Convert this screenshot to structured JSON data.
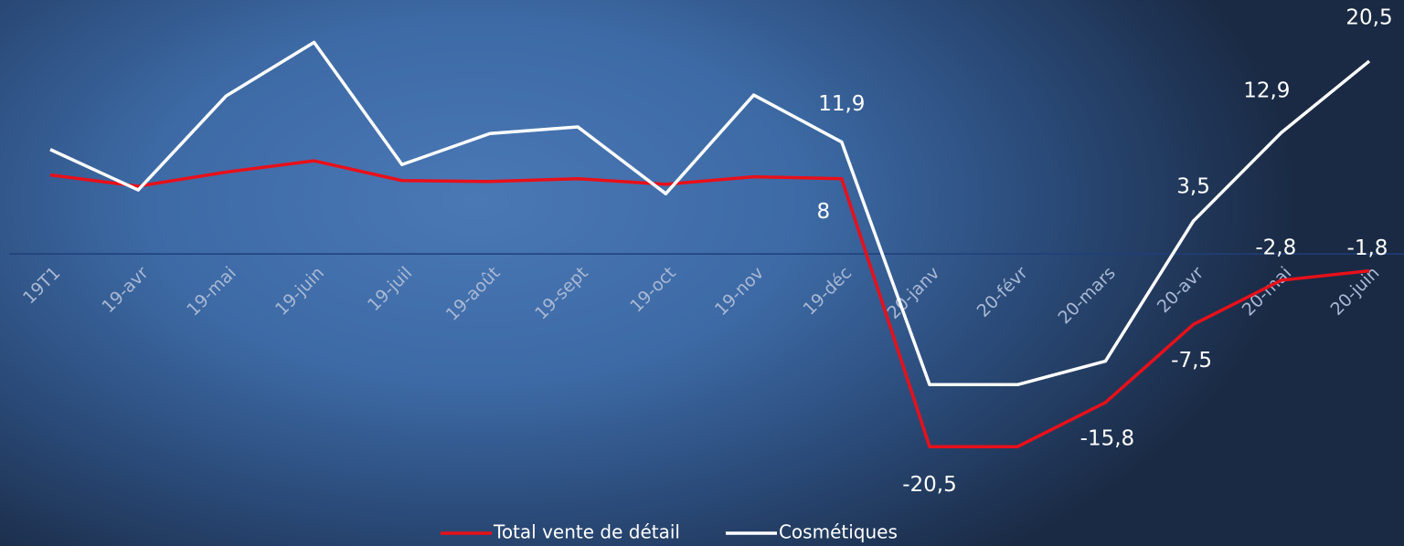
{
  "chart_data": {
    "type": "line",
    "categories": [
      "19T1",
      "19-avr",
      "19-mai",
      "19-juin",
      "19-juil",
      "19-août",
      "19-sept",
      "19-oct",
      "19-nov",
      "19-déc",
      "20-janv",
      "20-févr",
      "20-mars",
      "20-avr",
      "20-mai",
      "20-juin"
    ],
    "series": [
      {
        "name": "Total vente de détail",
        "color": "#e8101a",
        "values": [
          8.4,
          7.2,
          8.7,
          9.9,
          7.8,
          7.7,
          8.0,
          7.4,
          8.2,
          8,
          -20.5,
          -20.5,
          -15.8,
          -7.5,
          -2.8,
          -1.8
        ],
        "value_labels": [
          null,
          null,
          null,
          null,
          null,
          null,
          null,
          null,
          null,
          "8",
          "-20,5",
          null,
          "-15,8",
          "-7,5",
          "-2,8",
          "-1,8"
        ]
      },
      {
        "name": "Cosmétiques",
        "color": "#ffffff",
        "values": [
          11.1,
          6.8,
          16.8,
          22.5,
          9.5,
          12.8,
          13.5,
          6.4,
          16.9,
          11.9,
          -13.9,
          -13.9,
          -11.4,
          3.5,
          12.9,
          20.5
        ],
        "value_labels": [
          null,
          null,
          null,
          null,
          null,
          null,
          null,
          null,
          null,
          "11,9",
          null,
          null,
          null,
          "3,5",
          "12,9",
          "20,5"
        ]
      }
    ],
    "ylim": [
      -25,
      27
    ],
    "legend": "bottom"
  }
}
